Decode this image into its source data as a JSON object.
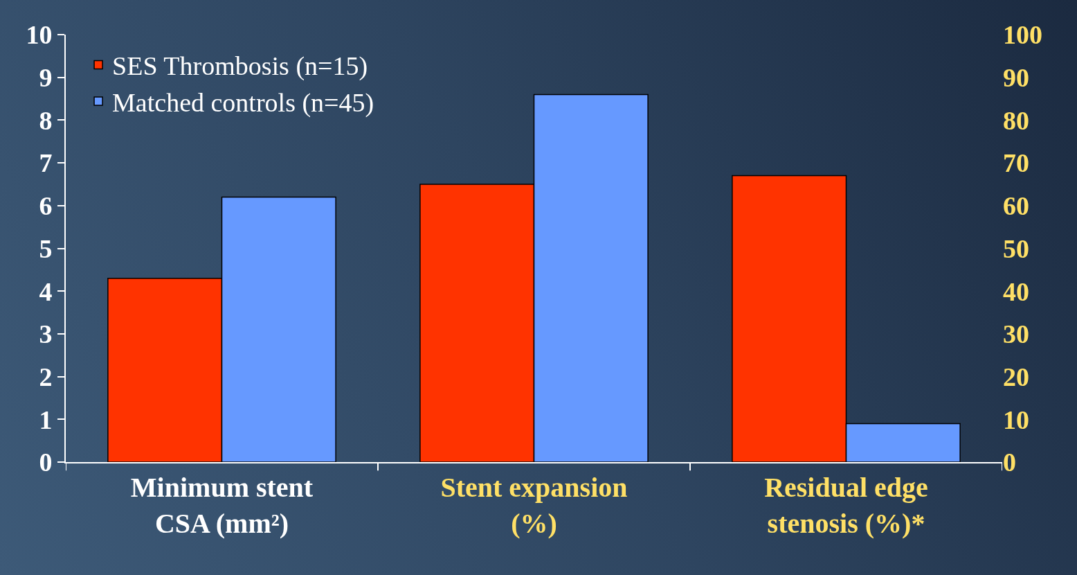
{
  "chart_data": {
    "type": "bar",
    "categories": [
      "Minimum stent CSA (mm²)",
      "Stent expansion (%)",
      "Residual edge stenosis (%)*"
    ],
    "series": [
      {
        "name": "SES Thrombosis (n=15)",
        "color": "#ff3300",
        "values": [
          4.3,
          null,
          null
        ]
      },
      {
        "name": "Matched controls (n=45)",
        "color": "#6699ff",
        "values": [
          6.2,
          null,
          null
        ]
      },
      {
        "color": "#ff3300",
        "axis": "y2",
        "values": [
          null,
          65,
          67
        ]
      },
      {
        "color": "#6699ff",
        "axis": "y2",
        "values": [
          null,
          86,
          9
        ]
      }
    ],
    "ylim": [
      0,
      10
    ],
    "yticks": [
      0,
      1,
      2,
      3,
      4,
      5,
      6,
      7,
      8,
      9,
      10
    ],
    "y2lim": [
      0,
      100
    ],
    "y2ticks": [
      0,
      10,
      20,
      30,
      40,
      50,
      60,
      70,
      80,
      90,
      100
    ],
    "grid": false,
    "legend": "top left"
  }
}
